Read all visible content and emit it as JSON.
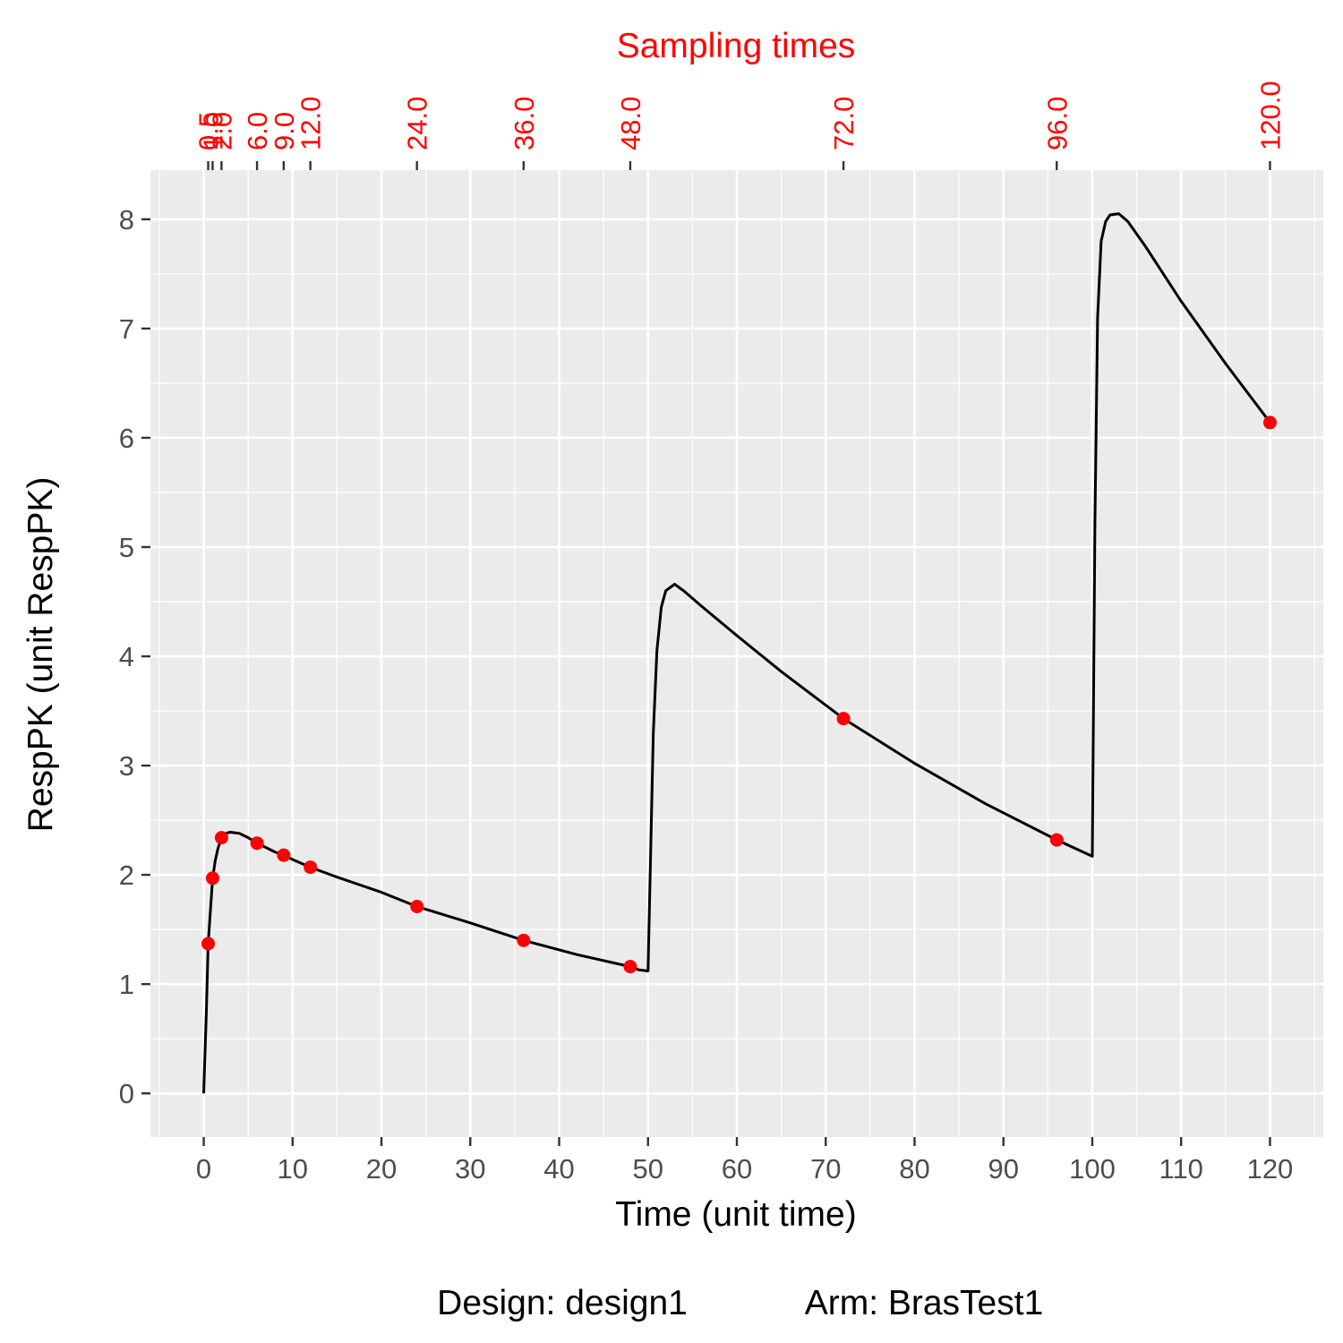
{
  "chart_data": {
    "type": "line",
    "title": "",
    "xlabel": "Time (unit time)",
    "ylabel": "RespPK (unit RespPK)",
    "xlim": [
      -6,
      126
    ],
    "ylim": [
      -0.4,
      8.45
    ],
    "x_ticks": [
      0,
      10,
      20,
      30,
      40,
      50,
      60,
      70,
      80,
      90,
      100,
      110,
      120
    ],
    "x_tick_labels": [
      "0",
      "10",
      "20",
      "30",
      "40",
      "50",
      "60",
      "70",
      "80",
      "90",
      "100",
      "110",
      "120"
    ],
    "y_ticks": [
      0,
      1,
      2,
      3,
      4,
      5,
      6,
      7,
      8
    ],
    "y_tick_labels": [
      "0",
      "1",
      "2",
      "3",
      "4",
      "5",
      "6",
      "7",
      "8"
    ],
    "grid": true,
    "top_axis": {
      "title": "Sampling times",
      "ticks": [
        0.5,
        1,
        2,
        6,
        9,
        12,
        24,
        36,
        48,
        72,
        96,
        120
      ],
      "tick_labels": [
        "0.5",
        "1.0",
        "2.0",
        "6.0",
        "9.0",
        "12.0",
        "24.0",
        "36.0",
        "48.0",
        "72.0",
        "96.0",
        "120.0"
      ],
      "color": "#ff0000"
    },
    "series": [
      {
        "kind": "line",
        "color": "#000000",
        "x": [
          0,
          0.3,
          0.5,
          0.8,
          1,
          1.3,
          1.6,
          2,
          2.5,
          3,
          4,
          5,
          6,
          8,
          9,
          10,
          12,
          15,
          20,
          24,
          30,
          36,
          42,
          48,
          49,
          50,
          50.3,
          50.6,
          51,
          51.5,
          52,
          53,
          54,
          56,
          60,
          65,
          72,
          80,
          88,
          96,
          100,
          100.3,
          100.6,
          101,
          101.5,
          102,
          103,
          104,
          106,
          110,
          115,
          120
        ],
        "y": [
          0,
          0.75,
          1.37,
          1.73,
          1.97,
          2.13,
          2.24,
          2.34,
          2.38,
          2.39,
          2.38,
          2.34,
          2.29,
          2.21,
          2.18,
          2.14,
          2.07,
          1.98,
          1.84,
          1.71,
          1.56,
          1.4,
          1.27,
          1.16,
          1.13,
          1.12,
          2.2,
          3.3,
          4.05,
          4.45,
          4.6,
          4.66,
          4.6,
          4.46,
          4.19,
          3.86,
          3.43,
          3.02,
          2.65,
          2.32,
          2.17,
          5.2,
          7.1,
          7.8,
          7.98,
          8.04,
          8.05,
          7.98,
          7.75,
          7.25,
          6.68,
          6.14
        ]
      },
      {
        "kind": "points",
        "color": "#ff0000",
        "x": [
          0.5,
          1,
          2,
          6,
          9,
          12,
          24,
          36,
          48,
          72,
          96,
          120
        ],
        "y": [
          1.37,
          1.97,
          2.34,
          2.29,
          2.18,
          2.07,
          1.71,
          1.4,
          1.16,
          3.43,
          2.32,
          6.14
        ]
      }
    ]
  },
  "caption": {
    "design": "Design: design1",
    "arm": "Arm: BrasTest1"
  }
}
